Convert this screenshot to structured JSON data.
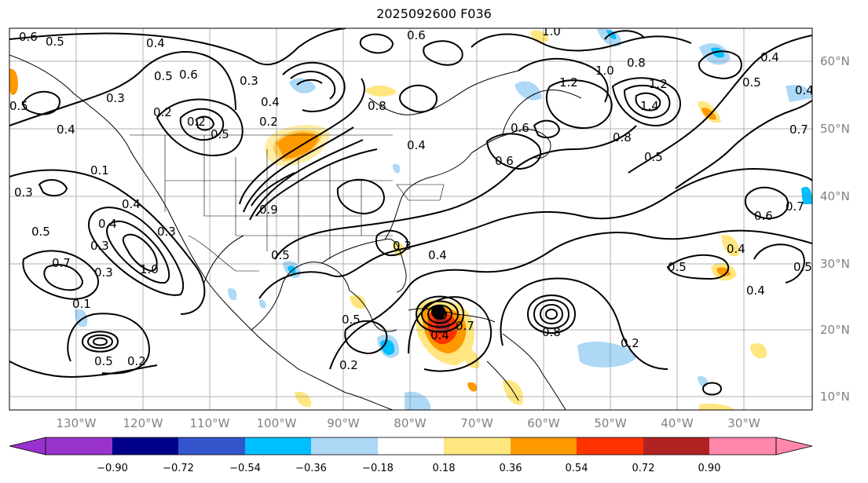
{
  "title": "2025092600 F036",
  "map": {
    "lon_labels": [
      "130°W",
      "120°W",
      "110°W",
      "100°W",
      "90°W",
      "80°W",
      "70°W",
      "60°W",
      "50°W",
      "40°W",
      "30°W"
    ],
    "lat_labels": [
      "60°N",
      "50°N",
      "40°N",
      "30°N",
      "20°N",
      "10°N"
    ],
    "contour_labels": [
      "0.6",
      "0.5",
      "0.4",
      "0.5",
      "0.6",
      "0.3",
      "0.3",
      "0.2",
      "0.4",
      "0.5",
      "0.2",
      "0.4",
      "0.8",
      "0.4",
      "0.6",
      "0.6",
      "1.0",
      "1.2",
      "1.0",
      "0.8",
      "1.2",
      "1.4",
      "0.4",
      "0.5",
      "0.6",
      "0.8",
      "0.5",
      "0.4",
      "0.7",
      "0.1",
      "0.3",
      "0.5",
      "0.4",
      "0.9",
      "1.0",
      "0.7",
      "0.3",
      "0.3",
      "0.5",
      "0.4",
      "0.6",
      "0.7",
      "0.5",
      "0.4",
      "0.4",
      "0.1",
      "0.2",
      "0.5",
      "0.2",
      "0.8",
      "0.7",
      "0.2",
      "0.5",
      "0.3",
      "0.4",
      "0.5",
      "0.2",
      "0.5",
      "0.4",
      "0.3"
    ]
  },
  "colorbar": {
    "ticks": [
      "−0.90",
      "−0.72",
      "−0.54",
      "−0.36",
      "−0.18",
      "0.18",
      "0.36",
      "0.54",
      "0.72",
      "0.90"
    ],
    "colors": [
      "#8b2fcf",
      "#9932cc",
      "#00008b",
      "#3355cc",
      "#00bfff",
      "#add8f6",
      "#ffffff",
      "#ffe680",
      "#ff9900",
      "#ff3300",
      "#b22222",
      "#ff88aa",
      "#ff88aa"
    ]
  }
}
